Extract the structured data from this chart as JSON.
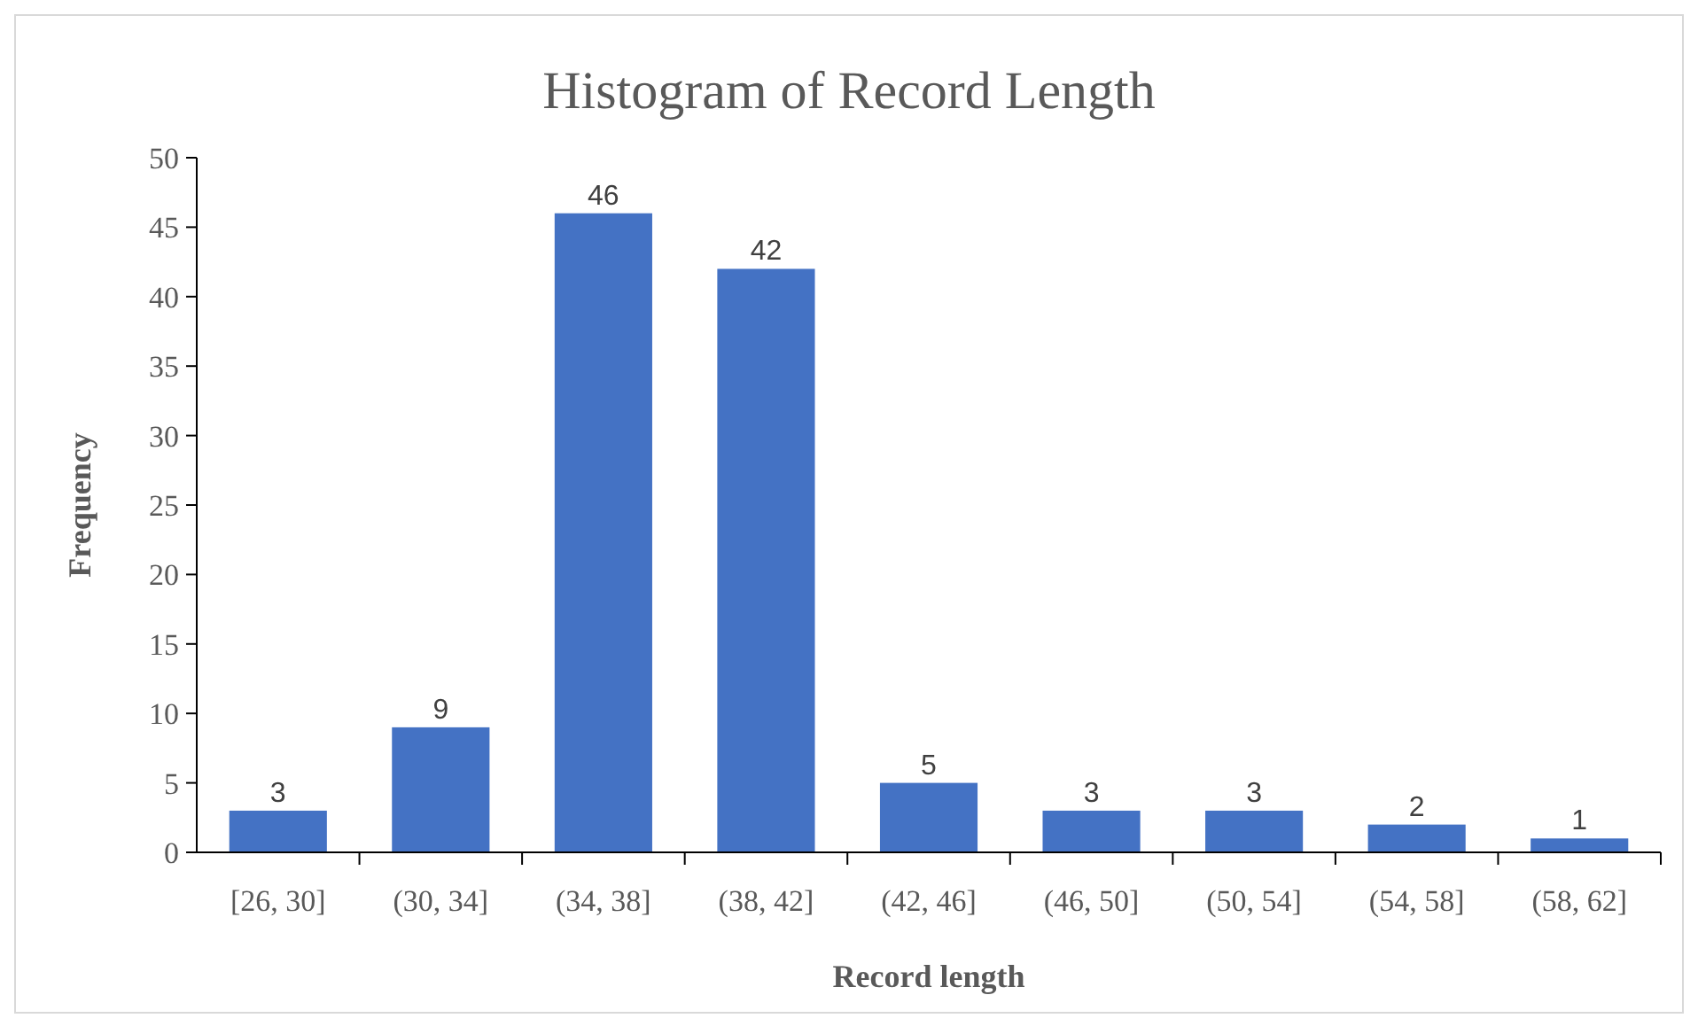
{
  "chart_data": {
    "type": "bar",
    "title": "Histogram of Record Length",
    "xlabel": "Record length",
    "ylabel": "Frequency",
    "categories": [
      "[26, 30]",
      "(30, 34]",
      "(34, 38]",
      "(38, 42]",
      "(42, 46]",
      "(46, 50]",
      "(50, 54]",
      "(54, 58]",
      "(58, 62]"
    ],
    "values": [
      3,
      9,
      46,
      42,
      5,
      3,
      3,
      2,
      1
    ],
    "color": "#4472c4",
    "ylim": [
      0,
      50
    ],
    "yticks": [
      0,
      5,
      10,
      15,
      20,
      25,
      30,
      35,
      40,
      45,
      50
    ],
    "data_labels": true
  }
}
